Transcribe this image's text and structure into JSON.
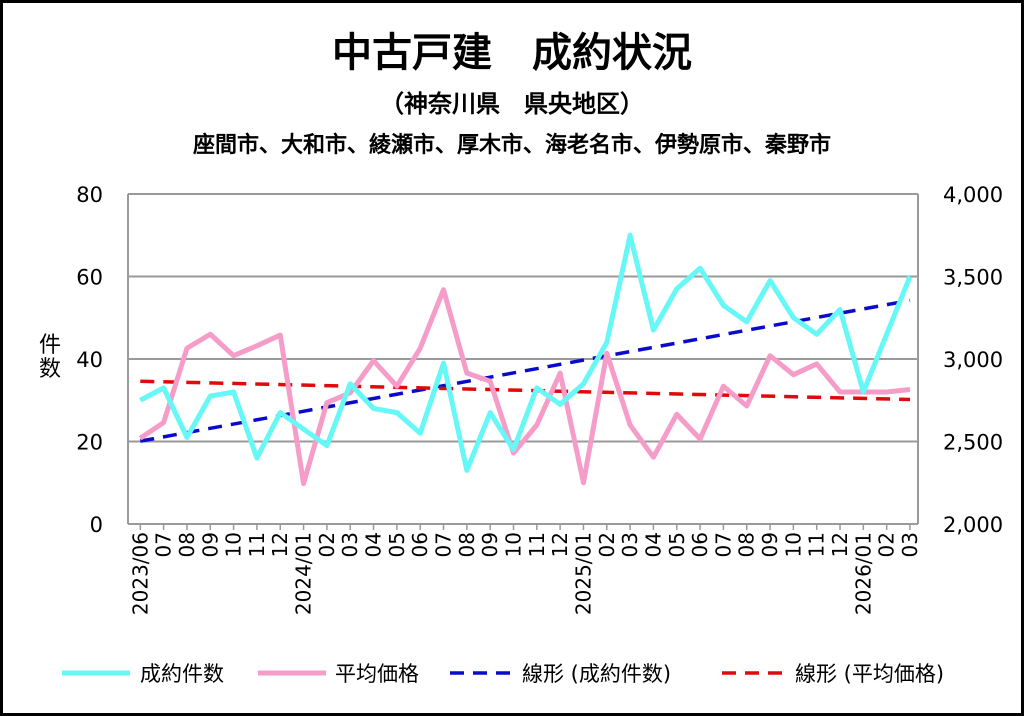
{
  "chart_data": {
    "type": "line",
    "title": "中古戸建　成約状況",
    "subtitle": "（神奈川県　県央地区）",
    "subtitle2": "座間市、大和市、綾瀬市、厚木市、海老名市、伊勢原市、秦野市",
    "ylabel": "件数",
    "ylim": [
      0,
      80
    ],
    "yticks": [
      "0",
      "20",
      "40",
      "60",
      "80"
    ],
    "y2lim": [
      2000,
      4000
    ],
    "y2ticks": [
      "2,000",
      "2,500",
      "3,000",
      "3,500",
      "4,000"
    ],
    "grid": true,
    "legend_position": "bottom",
    "categories": [
      "2023/06",
      "07",
      "08",
      "09",
      "10",
      "11",
      "12",
      "2024/01",
      "02",
      "03",
      "04",
      "05",
      "06",
      "07",
      "08",
      "09",
      "10",
      "11",
      "12",
      "2025/01",
      "02",
      "03",
      "04",
      "05",
      "06",
      "07",
      "08",
      "09",
      "10",
      "11",
      "12",
      "2026/01",
      "02",
      "03"
    ],
    "series": [
      {
        "name": "成約件数",
        "axis": "left",
        "color": "#66f7f7",
        "style": "solid",
        "values": [
          30,
          33,
          21,
          31,
          32,
          16,
          27,
          23,
          19,
          34,
          28,
          27,
          22,
          39,
          13,
          27,
          18,
          33,
          29,
          34,
          44,
          70,
          47,
          57,
          62,
          53,
          49,
          59,
          50,
          46,
          52,
          32,
          46,
          60
        ]
      },
      {
        "name": "平均価格",
        "axis": "right",
        "color": "#f59cc8",
        "style": "solid",
        "values": [
          2520,
          2615,
          3065,
          3150,
          3020,
          3080,
          3145,
          2245,
          2735,
          2795,
          2990,
          2835,
          3065,
          3420,
          2915,
          2865,
          2430,
          2600,
          2915,
          2250,
          3035,
          2600,
          2405,
          2665,
          2515,
          2835,
          2715,
          3020,
          2905,
          2970,
          2800,
          2800,
          2800,
          2815
        ]
      },
      {
        "name": "線形 (成約件数)",
        "axis": "left",
        "color": "#0a0acc",
        "style": "dashed",
        "trend_of": 0
      },
      {
        "name": "線形 (平均価格)",
        "axis": "right",
        "color": "#e00a0a",
        "style": "dashed",
        "trend_of": 1
      }
    ]
  }
}
